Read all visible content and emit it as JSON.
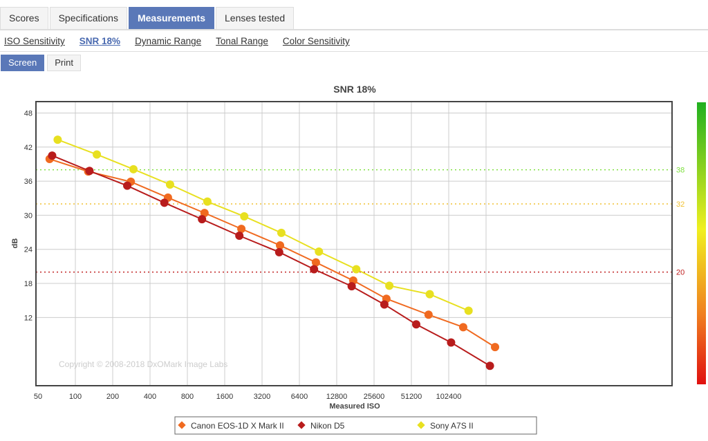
{
  "tabs": [
    {
      "label": "Scores"
    },
    {
      "label": "Specifications"
    },
    {
      "label": "Measurements",
      "active": true
    },
    {
      "label": "Lenses tested"
    }
  ],
  "subtabs": [
    {
      "label": "ISO Sensitivity"
    },
    {
      "label": "SNR 18%",
      "active": true
    },
    {
      "label": "Dynamic Range"
    },
    {
      "label": "Tonal Range"
    },
    {
      "label": "Color Sensitivity"
    }
  ],
  "modes": [
    {
      "label": "Screen",
      "active": true
    },
    {
      "label": "Print"
    }
  ],
  "chart_data": {
    "type": "line",
    "title": "SNR 18%",
    "xlabel": "Measured ISO",
    "ylabel": "dB",
    "xscale": "log2",
    "xlim": [
      50,
      300000
    ],
    "ylim": [
      0,
      50
    ],
    "xticks": [
      "50",
      "100",
      "200",
      "400",
      "800",
      "1600",
      "3200",
      "6400",
      "12800",
      "25600",
      "51200",
      "102400"
    ],
    "yticks": [
      "12",
      "18",
      "24",
      "30",
      "36",
      "42",
      "48"
    ],
    "grid": true,
    "copyright": "Copyright © 2008-2018 DxOMark Image Labs",
    "reference_lines": [
      {
        "value": 38,
        "label": "38",
        "color": "#7fe040"
      },
      {
        "value": 32,
        "label": "32",
        "color": "#f0c030"
      },
      {
        "value": 20,
        "label": "20",
        "color": "#c02020"
      }
    ],
    "legend_position": "bottom",
    "series": [
      {
        "name": "Canon EOS-1D X Mark II",
        "color": "#f06a20",
        "x": [
          62,
          127,
          280,
          558,
          1100,
          2180,
          4470,
          8700,
          17400,
          32200,
          70400,
          134000,
          242000
        ],
        "y": [
          39.9,
          37.7,
          35.9,
          33.1,
          30.4,
          27.6,
          24.7,
          21.7,
          18.5,
          15.3,
          12.5,
          10.3,
          6.8
        ]
      },
      {
        "name": "Nikon D5",
        "color": "#b81c1c",
        "x": [
          65,
          130,
          262,
          522,
          1050,
          2100,
          4400,
          8400,
          16900,
          31000,
          56000,
          107000,
          220000
        ],
        "y": [
          40.5,
          37.8,
          35.2,
          32.2,
          29.3,
          26.4,
          23.5,
          20.5,
          17.5,
          14.3,
          10.8,
          7.6,
          3.5
        ]
      },
      {
        "name": "Sony A7S II",
        "color": "#e8e020",
        "x": [
          72,
          149,
          294,
          580,
          1160,
          2300,
          4580,
          9200,
          18400,
          34000,
          72000,
          148000
        ],
        "y": [
          43.3,
          40.7,
          38.1,
          35.4,
          32.4,
          29.8,
          26.9,
          23.6,
          20.5,
          17.6,
          16.1,
          13.2
        ]
      }
    ]
  }
}
